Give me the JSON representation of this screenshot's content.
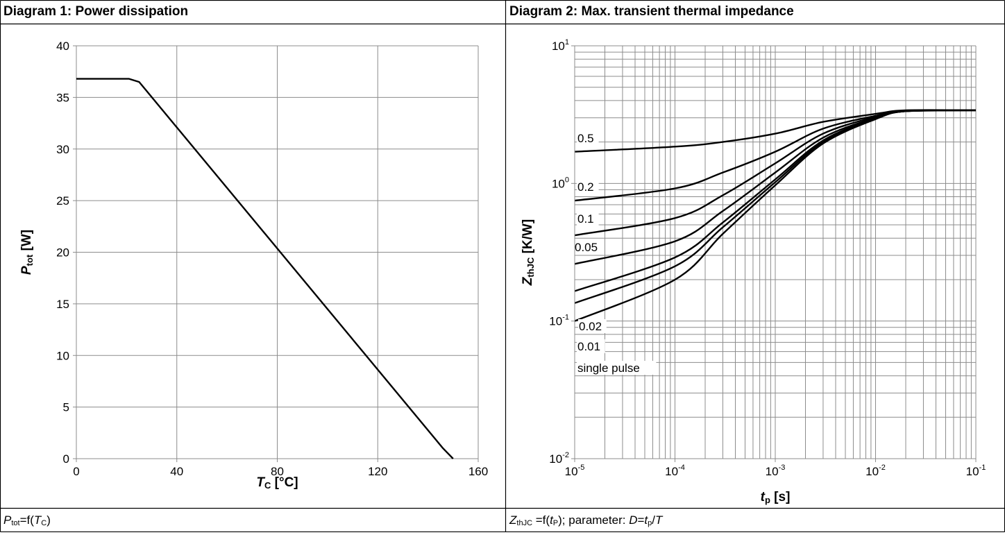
{
  "diagram1": {
    "title": "Diagram 1: Power dissipation",
    "caption": {
      "sym": "P",
      "sub": "tot",
      "mid": "=f(",
      "arg": "T",
      "argsub": "C",
      "end": ")"
    }
  },
  "diagram2": {
    "title": "Diagram 2: Max. transient thermal impedance",
    "caption": {
      "sym": "Z",
      "sub": "thJC",
      "mid": " =f(",
      "arg": "t",
      "argsub": "P",
      "after": "); parameter: ",
      "dvar": "D",
      "eq": "=",
      "tvar": "t",
      "tsub": "p",
      "slash": "/",
      "Tvar": "T"
    }
  },
  "chart_data": [
    {
      "type": "line",
      "title": "Diagram 1: Power dissipation",
      "xlabel": {
        "sym": "T",
        "sub": "C",
        "unit": " [°C]"
      },
      "ylabel": {
        "sym": "P",
        "sub": "tot",
        "unit": " [W]"
      },
      "xlim": [
        0,
        160
      ],
      "ylim": [
        0,
        40
      ],
      "xticks": [
        "0",
        "40",
        "80",
        "120",
        "160"
      ],
      "yticks": [
        "0",
        "5",
        "10",
        "15",
        "20",
        "25",
        "30",
        "35",
        "40"
      ],
      "grid": true,
      "series": [
        {
          "x": [
            0,
            21,
            25,
            146,
            150
          ],
          "y": [
            36.8,
            36.8,
            36.5,
            1.0,
            0
          ]
        }
      ]
    },
    {
      "type": "line",
      "title": "Diagram 2: Max. transient thermal impedance",
      "xlabel": {
        "sym": "t",
        "sub": "p",
        "unit": " [s]"
      },
      "ylabel": {
        "sym": "Z",
        "sub": "thJC",
        "unit": " [K/W]"
      },
      "xscale": "log",
      "yscale": "log",
      "xlim": [
        1e-05,
        0.1
      ],
      "ylim": [
        0.01,
        10
      ],
      "xticks": [
        {
          "base": "10",
          "exp": "-5"
        },
        {
          "base": "10",
          "exp": "-4"
        },
        {
          "base": "10",
          "exp": "-3"
        },
        {
          "base": "10",
          "exp": "-2"
        },
        {
          "base": "10",
          "exp": "-1"
        }
      ],
      "yticks": [
        {
          "base": "10",
          "exp": "-2"
        },
        {
          "base": "10",
          "exp": "-1"
        },
        {
          "base": "10",
          "exp": "0"
        },
        {
          "base": "10",
          "exp": "1"
        }
      ],
      "grid": true,
      "series": [
        {
          "name": "0.5",
          "x": [
            1e-05,
            0.0001,
            0.0003,
            0.001,
            0.003,
            0.01,
            0.02,
            0.1
          ],
          "y": [
            1.7,
            1.85,
            2.0,
            2.3,
            2.8,
            3.2,
            3.4,
            3.4
          ]
        },
        {
          "name": "0.2",
          "x": [
            1e-05,
            0.0001,
            0.0003,
            0.001,
            0.003,
            0.01,
            0.02,
            0.1
          ],
          "y": [
            0.75,
            0.92,
            1.2,
            1.7,
            2.5,
            3.1,
            3.35,
            3.4
          ]
        },
        {
          "name": "0.1",
          "x": [
            1e-05,
            0.0001,
            0.0003,
            0.001,
            0.003,
            0.01,
            0.02,
            0.1
          ],
          "y": [
            0.42,
            0.56,
            0.82,
            1.4,
            2.3,
            3.05,
            3.35,
            3.4
          ]
        },
        {
          "name": "0.05",
          "x": [
            1e-05,
            0.0001,
            0.0003,
            0.001,
            0.003,
            0.01,
            0.02,
            0.1
          ],
          "y": [
            0.26,
            0.38,
            0.63,
            1.2,
            2.15,
            3.0,
            3.35,
            3.4
          ]
        },
        {
          "name": "0.02",
          "x": [
            1e-05,
            0.0001,
            0.0003,
            0.001,
            0.003,
            0.01,
            0.02,
            0.1
          ],
          "y": [
            0.165,
            0.29,
            0.52,
            1.07,
            2.05,
            2.97,
            3.35,
            3.4
          ]
        },
        {
          "name": "0.01",
          "x": [
            1e-05,
            0.0001,
            0.0003,
            0.001,
            0.003,
            0.01,
            0.02,
            0.1
          ],
          "y": [
            0.135,
            0.25,
            0.48,
            1.02,
            2.0,
            2.95,
            3.35,
            3.4
          ]
        },
        {
          "name": "single pulse",
          "x": [
            1e-05,
            0.0001,
            0.0003,
            0.001,
            0.003,
            0.01,
            0.02,
            0.1
          ],
          "y": [
            0.1,
            0.2,
            0.43,
            0.97,
            1.95,
            2.93,
            3.35,
            3.4
          ]
        }
      ]
    }
  ]
}
